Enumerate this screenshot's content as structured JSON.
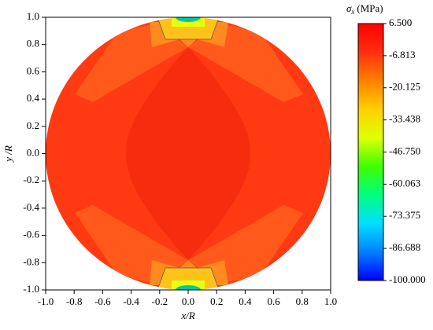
{
  "chart_data": {
    "type": "contour",
    "xlabel": "x/R",
    "ylabel": "y /R",
    "xlim": [
      -1,
      1
    ],
    "ylim": [
      -1,
      1
    ],
    "xticks": [
      {
        "value": -1,
        "label": "-1.0"
      },
      {
        "value": -0.8,
        "label": "-0.8"
      },
      {
        "value": -0.6,
        "label": "-0.6"
      },
      {
        "value": -0.4,
        "label": "-0.4"
      },
      {
        "value": -0.2,
        "label": "-0.2"
      },
      {
        "value": 0,
        "label": "0.0"
      },
      {
        "value": 0.2,
        "label": "0.2"
      },
      {
        "value": 0.4,
        "label": "0.4"
      },
      {
        "value": 0.6,
        "label": "0.6"
      },
      {
        "value": 0.8,
        "label": "0.8"
      },
      {
        "value": 1,
        "label": "1.0"
      }
    ],
    "yticks": [
      {
        "value": -1,
        "label": "-1.0"
      },
      {
        "value": -0.8,
        "label": "-0.8"
      },
      {
        "value": -0.6,
        "label": "-0.6"
      },
      {
        "value": -0.4,
        "label": "-0.4"
      },
      {
        "value": -0.2,
        "label": "-0.2"
      },
      {
        "value": 0,
        "label": "0.0"
      },
      {
        "value": 0.2,
        "label": "0.2"
      },
      {
        "value": 0.4,
        "label": "0.4"
      },
      {
        "value": 0.6,
        "label": "0.6"
      },
      {
        "value": 0.8,
        "label": "0.8"
      },
      {
        "value": 1,
        "label": "1.0"
      }
    ],
    "colorbar": {
      "symbol": "σ",
      "subscript": "x",
      "unit": "(MPa)",
      "clim": [
        -100,
        6.5
      ],
      "ticks": [
        {
          "value": 6.5,
          "label": "6.500"
        },
        -6.813,
        -20.125,
        -33.438,
        {
          "value": -46.75,
          "label": "-46.750"
        },
        -60.063,
        -73.375,
        -86.688,
        {
          "value": -100,
          "label": "-100.000"
        }
      ],
      "colors": [
        "#0000ff",
        "#0080ff",
        "#00e0ff",
        "#00ff80",
        "#40ff00",
        "#e0ff00",
        "#ffd000",
        "#ff8000",
        "#ff3010",
        "#ff0000"
      ]
    }
  }
}
